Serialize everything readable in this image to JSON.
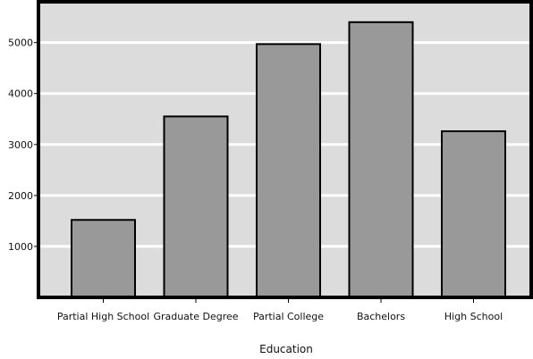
{
  "chart_data": {
    "type": "bar",
    "title": "",
    "xlabel": "Education",
    "ylabel": "",
    "categories": [
      "Partial High School",
      "Graduate Degree",
      "Partial College",
      "Bachelors",
      "High School"
    ],
    "values": [
      1520,
      3550,
      4970,
      5400,
      3260
    ],
    "ylim": [
      0,
      5800
    ],
    "yticks": [
      1000,
      2000,
      3000,
      4000,
      5000
    ],
    "grid": true,
    "legend": "none",
    "colors": {
      "plot_background": "#dcdcdc",
      "bar_fill": "#999999",
      "bar_stroke": "#000000",
      "grid": "#ffffff",
      "frame": "#000000"
    }
  }
}
